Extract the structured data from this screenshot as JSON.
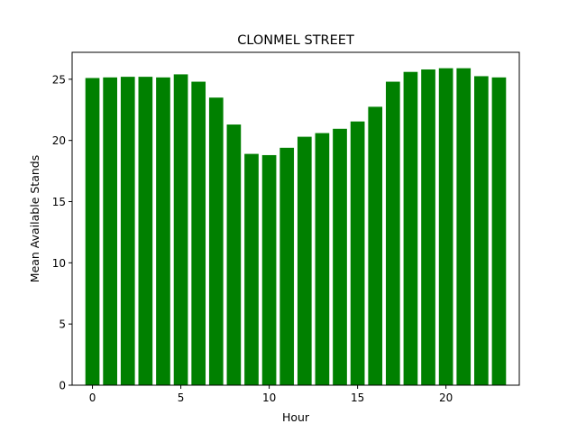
{
  "chart_data": {
    "type": "bar",
    "title": "CLONMEL STREET",
    "xlabel": "Hour",
    "ylabel": "Mean Available Stands",
    "x": [
      0,
      1,
      2,
      3,
      4,
      5,
      6,
      7,
      8,
      9,
      10,
      11,
      12,
      13,
      14,
      15,
      16,
      17,
      18,
      19,
      20,
      21,
      22,
      23
    ],
    "values": [
      25.1,
      25.15,
      25.2,
      25.2,
      25.15,
      25.4,
      24.8,
      23.5,
      21.3,
      18.9,
      18.8,
      19.4,
      20.3,
      20.6,
      20.95,
      21.55,
      22.75,
      24.8,
      25.6,
      25.8,
      25.9,
      25.9,
      25.25,
      25.15
    ],
    "xlim": [
      -1.15,
      24.15
    ],
    "ylim": [
      0,
      27.2
    ],
    "xticks": [
      "0",
      "5",
      "10",
      "15",
      "20"
    ],
    "yticks": [
      "0",
      "5",
      "10",
      "15",
      "20",
      "25"
    ],
    "bar_color": "#008000",
    "grid": false,
    "legend": "none"
  }
}
